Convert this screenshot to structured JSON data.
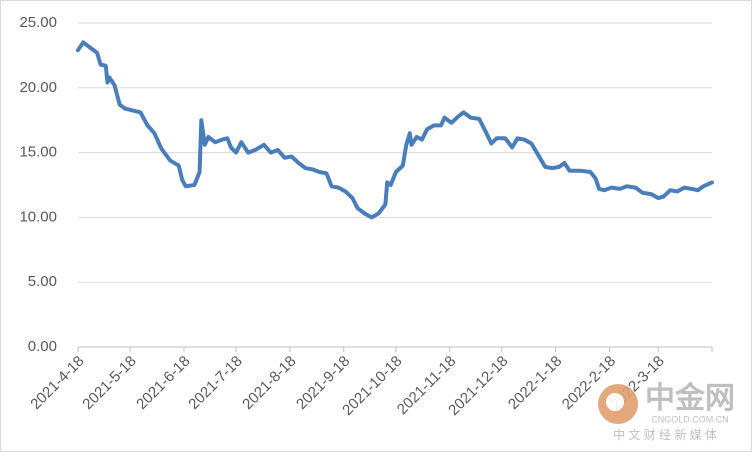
{
  "chart_data": {
    "type": "line",
    "x": [
      "2021-4-18",
      "2021-4-21",
      "2021-4-25",
      "2021-4-29",
      "2021-5-1",
      "2021-5-4",
      "2021-5-5",
      "2021-5-6",
      "2021-5-9",
      "2021-5-12",
      "2021-5-15",
      "2021-5-24",
      "2021-5-28",
      "2021-6-1",
      "2021-6-5",
      "2021-6-10",
      "2021-6-15",
      "2021-6-17",
      "2021-6-19",
      "2021-6-24",
      "2021-6-27",
      "2021-6-28",
      "2021-6-30",
      "2021-7-2",
      "2021-7-6",
      "2021-7-10",
      "2021-7-13",
      "2021-7-15",
      "2021-7-18",
      "2021-7-21",
      "2021-7-25",
      "2021-7-29",
      "2021-8-3",
      "2021-8-7",
      "2021-8-11",
      "2021-8-15",
      "2021-8-19",
      "2021-8-23",
      "2021-8-27",
      "2021-8-31",
      "2021-9-4",
      "2021-9-8",
      "2021-9-11",
      "2021-9-15",
      "2021-9-19",
      "2021-9-23",
      "2021-9-26",
      "2021-9-30",
      "2021-10-4",
      "2021-10-8",
      "2021-10-12",
      "2021-10-13",
      "2021-10-15",
      "2021-10-18",
      "2021-10-22",
      "2021-10-24",
      "2021-10-26",
      "2021-10-27",
      "2021-10-30",
      "2021-11-2",
      "2021-11-5",
      "2021-11-9",
      "2021-11-13",
      "2021-11-15",
      "2021-11-19",
      "2021-11-23",
      "2021-11-26",
      "2021-11-30",
      "2021-12-5",
      "2021-12-8",
      "2021-12-12",
      "2021-12-15",
      "2021-12-20",
      "2021-12-24",
      "2021-12-27",
      "2021-12-31",
      "2022-1-4",
      "2022-1-8",
      "2022-1-12",
      "2022-1-16",
      "2022-1-20",
      "2022-1-23",
      "2022-1-26",
      "2022-2-1",
      "2022-2-7",
      "2022-2-10",
      "2022-2-12",
      "2022-2-15",
      "2022-2-19",
      "2022-2-24",
      "2022-2-28",
      "2022-3-5",
      "2022-3-9",
      "2022-3-14",
      "2022-3-18",
      "2022-3-21",
      "2022-3-25",
      "2022-3-29",
      "2022-4-2",
      "2022-4-6",
      "2022-4-10",
      "2022-4-13",
      "2022-4-18"
    ],
    "series": [
      {
        "color": "#4a7ebb",
        "values": [
          22.9,
          23.5,
          23.1,
          22.7,
          21.8,
          21.7,
          20.4,
          20.8,
          20.2,
          18.7,
          18.4,
          18.1,
          17.1,
          16.5,
          15.3,
          14.4,
          14.0,
          12.9,
          12.4,
          12.5,
          13.5,
          17.5,
          15.6,
          16.2,
          15.8,
          16.0,
          16.1,
          15.4,
          15.0,
          15.8,
          15.0,
          15.2,
          15.6,
          15.0,
          15.2,
          14.6,
          14.7,
          14.2,
          13.8,
          13.7,
          13.5,
          13.4,
          12.4,
          12.3,
          12.0,
          11.5,
          10.7,
          10.3,
          10.0,
          10.3,
          11.0,
          12.7,
          12.5,
          13.5,
          14.0,
          15.6,
          16.5,
          15.6,
          16.2,
          16.0,
          16.8,
          17.1,
          17.1,
          17.7,
          17.3,
          17.8,
          18.1,
          17.7,
          17.6,
          16.8,
          15.7,
          16.1,
          16.1,
          15.4,
          16.1,
          16.0,
          15.7,
          14.8,
          13.9,
          13.8,
          13.9,
          14.2,
          13.6,
          13.6,
          13.5,
          13.0,
          12.2,
          12.1,
          12.3,
          12.2,
          12.4,
          12.3,
          11.9,
          11.8,
          11.5,
          11.6,
          12.1,
          12.0,
          12.3,
          12.2,
          12.1,
          12.4,
          12.7
        ]
      }
    ],
    "xlim": [
      "2021-4-18",
      "2022-4-18"
    ],
    "xticks": [
      "2021-4-18",
      "2021-5-18",
      "2021-6-18",
      "2021-7-18",
      "2021-8-18",
      "2021-9-18",
      "2021-10-18",
      "2021-11-18",
      "2021-12-18",
      "2022-1-18",
      "2022-2-18",
      "2022-3-18"
    ],
    "ylim": [
      0,
      25
    ],
    "yticks": [
      {
        "value": 0,
        "label": "0.00"
      },
      {
        "value": 5,
        "label": "5.00"
      },
      {
        "value": 10,
        "label": "10.00"
      },
      {
        "value": 15,
        "label": "15.00"
      },
      {
        "value": 20,
        "label": "20.00"
      },
      {
        "value": 25,
        "label": "25.00"
      }
    ],
    "grid": true
  },
  "watermark": {
    "brand": "中金网",
    "domain": "CNGOLD.COM.CN",
    "tagline": "中 文 财 经 新 媒 体"
  }
}
